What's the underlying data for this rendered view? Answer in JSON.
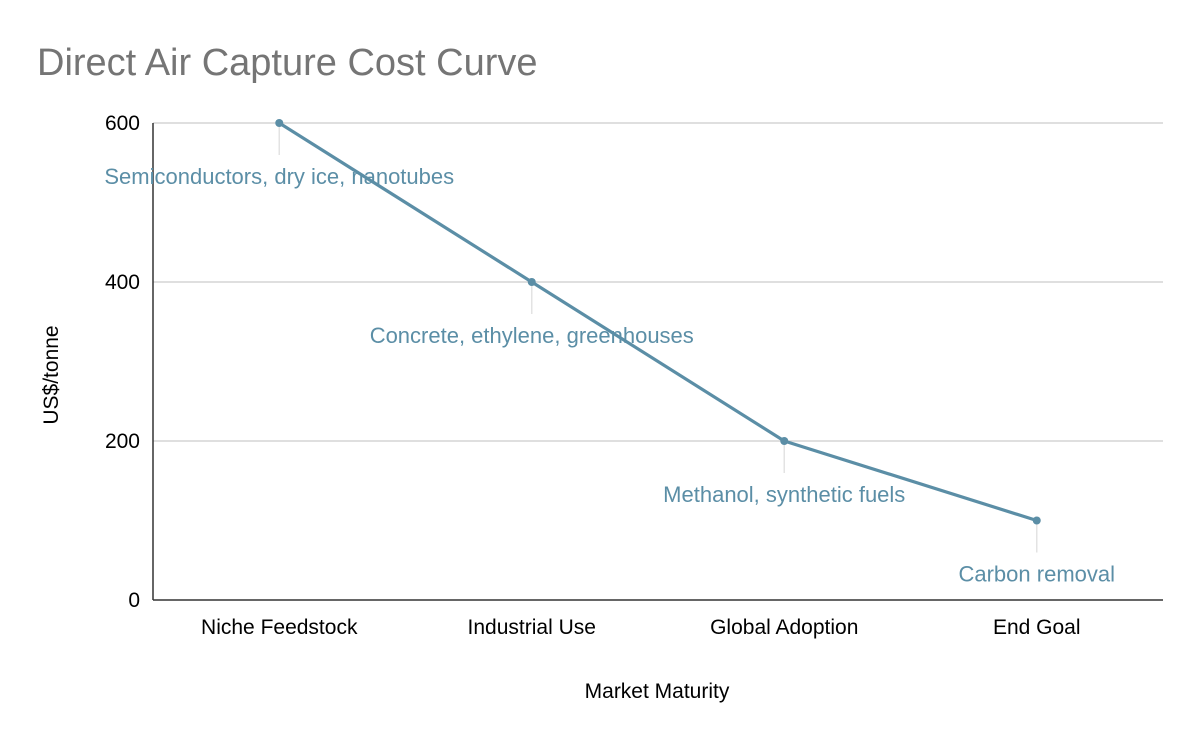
{
  "chart_data": {
    "type": "line",
    "title": "Direct Air Capture Cost Curve",
    "xlabel": "Market Maturity",
    "ylabel": "US$/tonne",
    "categories": [
      "Niche Feedstock",
      "Industrial Use",
      "Global Adoption",
      "End Goal"
    ],
    "series": [
      {
        "values": [
          600,
          400,
          200,
          100
        ]
      }
    ],
    "annotations": [
      "Semiconductors, dry ice, nanotubes",
      "Concrete, ethylene, greenhouses",
      "Methanol, synthetic fuels",
      "Carbon removal"
    ],
    "ylim": [
      0,
      600
    ],
    "yticks": [
      0,
      200,
      400,
      600
    ],
    "grid": true,
    "legend": "none",
    "colors": {
      "series": "#5b8ea6",
      "annotation": "#5b8ea6",
      "grid": "#cccccc",
      "axis": "#333333",
      "title": "#757575"
    }
  }
}
